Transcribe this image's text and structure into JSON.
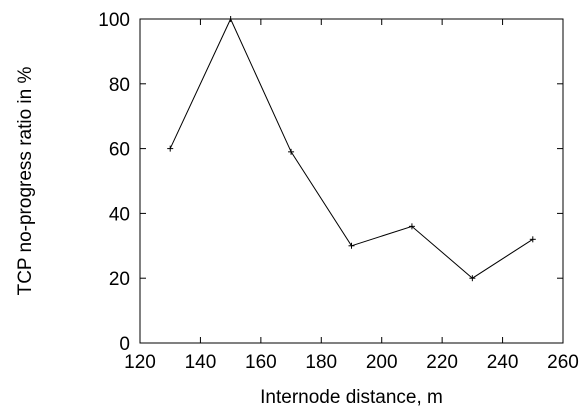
{
  "chart_data": {
    "type": "line",
    "title": "",
    "xlabel": "Internode distance, m",
    "ylabel": "TCP no-progress ratio in %",
    "xlim": [
      120,
      260
    ],
    "ylim": [
      0,
      100
    ],
    "xticks": [
      120,
      140,
      160,
      180,
      200,
      220,
      240,
      260
    ],
    "yticks": [
      0,
      20,
      40,
      60,
      80,
      100
    ],
    "grid": false,
    "legend": "none",
    "marker": "plus",
    "line_color": "#000000",
    "series": [
      {
        "x": [
          130,
          150,
          170,
          190,
          210,
          230,
          250
        ],
        "y": [
          60,
          100,
          59,
          30,
          36,
          20,
          32
        ]
      }
    ]
  }
}
